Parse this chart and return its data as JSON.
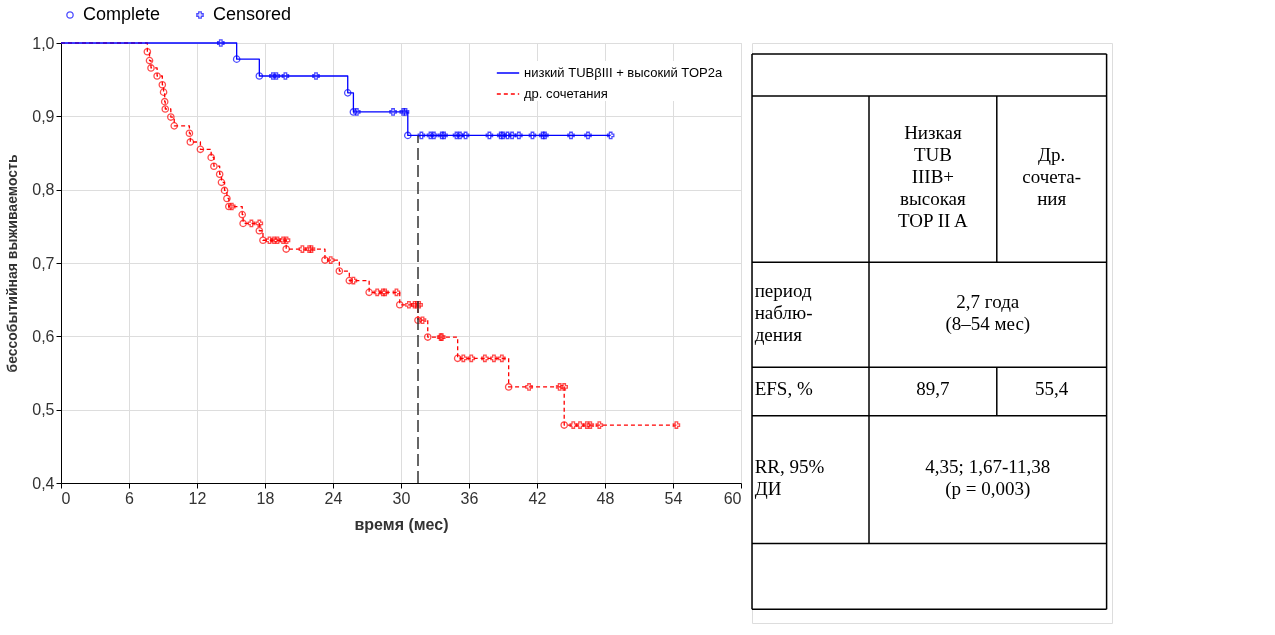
{
  "chart_data": [
    {
      "type": "step",
      "xlabel": "время (мес)",
      "ylabel": "бессобытийная выживаемость",
      "xlim": [
        0,
        60
      ],
      "xticks": [
        0,
        6,
        12,
        18,
        24,
        30,
        36,
        42,
        48,
        54,
        60
      ],
      "ylim": [
        0.4,
        1.0
      ],
      "yticks": [
        {
          "value": 0.4,
          "label": "0,4"
        },
        {
          "value": 0.5,
          "label": "0,5"
        },
        {
          "value": 0.6,
          "label": "0,6"
        },
        {
          "value": 0.7,
          "label": "0,7"
        },
        {
          "value": 0.8,
          "label": "0,8"
        },
        {
          "value": 0.9,
          "label": "0,9"
        },
        {
          "value": 1.0,
          "label": "1,0"
        }
      ],
      "grid": true,
      "legend": "top right",
      "ref_lines": [
        {
          "axis": "x",
          "value": 31.5,
          "color": "#333333",
          "line_style": "dashed"
        }
      ],
      "series": [
        {
          "name": "низкий TUBβIII + высокий TOP2a",
          "type": "step",
          "color": "#0000ff",
          "line_style": "solid",
          "x": [
            0,
            15.5,
            17.5,
            25.3,
            25.8,
            30.6,
            48.5
          ],
          "values": [
            1.0,
            0.978,
            0.955,
            0.932,
            0.906,
            0.874,
            0.874
          ]
        },
        {
          "name": "др. сочетания",
          "type": "step",
          "color": "#ff0000",
          "line_style": "dashed",
          "x": [
            0,
            7.62,
            7.81,
            7.94,
            8.48,
            8.94,
            9.05,
            9.15,
            9.2,
            9.69,
            9.99,
            11.33,
            11.41,
            12.3,
            13.25,
            13.49,
            14.0,
            14.16,
            14.43,
            14.64,
            14.81,
            15.99,
            16.07,
            17.5,
            17.82,
            19.87,
            23.29,
            24.56,
            25.44,
            27.19,
            29.89,
            31.5,
            32.36,
            35.0,
            39.5,
            44.4,
            54.3
          ],
          "values": [
            1.0,
            0.988,
            0.976,
            0.966,
            0.955,
            0.943,
            0.933,
            0.92,
            0.91,
            0.899,
            0.887,
            0.877,
            0.865,
            0.855,
            0.844,
            0.832,
            0.821,
            0.81,
            0.799,
            0.788,
            0.777,
            0.766,
            0.754,
            0.744,
            0.731,
            0.719,
            0.704,
            0.689,
            0.676,
            0.66,
            0.643,
            0.622,
            0.599,
            0.57,
            0.531,
            0.479,
            0.479
          ]
        },
        {
          "name": "Complete",
          "type": "scatter",
          "marker": "circle",
          "color": "#0000ff",
          "x": [
            15.5,
            17.5,
            25.3,
            25.8,
            30.6,
            7.62,
            7.81,
            7.94,
            8.48,
            8.94,
            9.05,
            9.15,
            9.2,
            9.69,
            9.99,
            11.33,
            11.41,
            12.3,
            13.25,
            13.49,
            14.0,
            14.16,
            14.43,
            14.64,
            14.81,
            15.99,
            16.07,
            17.5,
            17.82,
            19.87,
            23.29,
            24.56,
            25.44,
            27.19,
            29.89,
            31.5,
            32.36,
            35.0,
            39.5,
            44.4
          ],
          "values": [
            0.978,
            0.955,
            0.932,
            0.906,
            0.874,
            0.988,
            0.976,
            0.966,
            0.955,
            0.943,
            0.933,
            0.92,
            0.91,
            0.899,
            0.887,
            0.877,
            0.865,
            0.855,
            0.844,
            0.832,
            0.821,
            0.81,
            0.799,
            0.788,
            0.777,
            0.766,
            0.754,
            0.744,
            0.731,
            0.719,
            0.704,
            0.689,
            0.676,
            0.66,
            0.643,
            0.622,
            0.599,
            0.57,
            0.531,
            0.479
          ],
          "colors": [
            "#0000ff",
            "#0000ff",
            "#0000ff",
            "#0000ff",
            "#0000ff",
            "#ff0000",
            "#ff0000",
            "#ff0000",
            "#ff0000",
            "#ff0000",
            "#ff0000",
            "#ff0000",
            "#ff0000",
            "#ff0000",
            "#ff0000",
            "#ff0000",
            "#ff0000",
            "#ff0000",
            "#ff0000",
            "#ff0000",
            "#ff0000",
            "#ff0000",
            "#ff0000",
            "#ff0000",
            "#ff0000",
            "#ff0000",
            "#ff0000",
            "#ff0000",
            "#ff0000",
            "#ff0000",
            "#ff0000",
            "#ff0000",
            "#ff0000",
            "#ff0000",
            "#ff0000",
            "#ff0000",
            "#ff0000",
            "#ff0000",
            "#ff0000",
            "#ff0000"
          ]
        },
        {
          "name": "Censored",
          "type": "scatter",
          "marker": "cross",
          "color": "#0000ff",
          "x": [
            14.1,
            18.7,
            19.0,
            19.8,
            22.5,
            26.1,
            29.3,
            30.2,
            30.4,
            31.8,
            32.6,
            32.9,
            33.6,
            33.8,
            34.9,
            35.2,
            35.7,
            37.8,
            38.8,
            39.0,
            39.4,
            39.8,
            40.4,
            41.6,
            42.5,
            42.7,
            45.0,
            46.5,
            48.5,
            15.07,
            16.8,
            17.5,
            18.4,
            18.8,
            19.1,
            19.6,
            19.9,
            21.3,
            21.9,
            22.1,
            23.8,
            25.8,
            27.9,
            28.4,
            28.6,
            29.6,
            30.7,
            31.2,
            31.4,
            31.6,
            31.9,
            33.5,
            33.6,
            35.5,
            36.2,
            37.4,
            38.2,
            38.9,
            41.3,
            44.0,
            44.4,
            45.2,
            45.8,
            46.4,
            46.7,
            47.5,
            54.3
          ],
          "values": [
            1.0,
            0.955,
            0.955,
            0.955,
            0.955,
            0.906,
            0.906,
            0.906,
            0.906,
            0.874,
            0.874,
            0.874,
            0.874,
            0.874,
            0.874,
            0.874,
            0.874,
            0.874,
            0.874,
            0.874,
            0.874,
            0.874,
            0.874,
            0.874,
            0.874,
            0.874,
            0.874,
            0.874,
            0.874,
            0.777,
            0.754,
            0.754,
            0.731,
            0.731,
            0.731,
            0.731,
            0.731,
            0.719,
            0.719,
            0.719,
            0.704,
            0.676,
            0.66,
            0.66,
            0.66,
            0.66,
            0.643,
            0.643,
            0.643,
            0.643,
            0.622,
            0.599,
            0.599,
            0.57,
            0.57,
            0.57,
            0.57,
            0.57,
            0.531,
            0.531,
            0.531,
            0.479,
            0.479,
            0.479,
            0.479,
            0.479,
            0.479
          ],
          "colors": [
            "#0000ff",
            "#0000ff",
            "#0000ff",
            "#0000ff",
            "#0000ff",
            "#0000ff",
            "#0000ff",
            "#0000ff",
            "#0000ff",
            "#0000ff",
            "#0000ff",
            "#0000ff",
            "#0000ff",
            "#0000ff",
            "#0000ff",
            "#0000ff",
            "#0000ff",
            "#0000ff",
            "#0000ff",
            "#0000ff",
            "#0000ff",
            "#0000ff",
            "#0000ff",
            "#0000ff",
            "#0000ff",
            "#0000ff",
            "#0000ff",
            "#0000ff",
            "#0000ff",
            "#ff0000",
            "#ff0000",
            "#ff0000",
            "#ff0000",
            "#ff0000",
            "#ff0000",
            "#ff0000",
            "#ff0000",
            "#ff0000",
            "#ff0000",
            "#ff0000",
            "#ff0000",
            "#ff0000",
            "#ff0000",
            "#ff0000",
            "#ff0000",
            "#ff0000",
            "#ff0000",
            "#ff0000",
            "#ff0000",
            "#ff0000",
            "#ff0000",
            "#ff0000",
            "#ff0000",
            "#ff0000",
            "#ff0000",
            "#ff0000",
            "#ff0000",
            "#ff0000",
            "#ff0000",
            "#ff0000",
            "#ff0000",
            "#ff0000",
            "#ff0000",
            "#ff0000",
            "#ff0000",
            "#ff0000",
            "#ff0000"
          ]
        }
      ]
    },
    {
      "type": "other",
      "annotations": [
        "Низкая\nTUB\nIIIB+\nвысокая\nTOP II A",
        "Др.\nсочета-\nния",
        "период\nнаблю-\nдения",
        "2,7 года\n(8–54 мес)",
        "EFS, %",
        "89,7",
        "55,4",
        "RR, 95%\nДИ",
        "4,35; 1,67-11,38\n(p = 0,003)"
      ]
    }
  ]
}
